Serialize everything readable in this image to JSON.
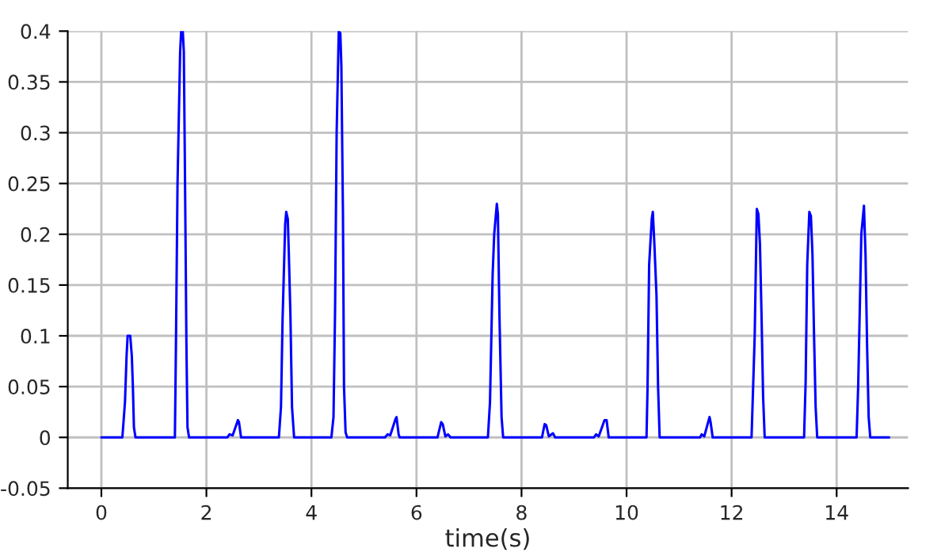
{
  "chart_data": {
    "type": "line",
    "xlabel": "time(s)",
    "xlim": [
      -0.64,
      15.36
    ],
    "xticks": [
      0,
      2,
      4,
      6,
      8,
      10,
      12,
      14
    ],
    "ylim": [
      -0.05,
      0.4
    ],
    "yticks": [
      {
        "value": -0.05,
        "label": "-0.05"
      },
      0,
      0.05,
      0.1,
      0.15,
      0.2,
      0.25,
      0.3,
      0.35,
      0.4
    ],
    "grid": true,
    "marker": "none",
    "line_style": "solid",
    "series": [
      {
        "color": "#0000ff",
        "x": [
          0,
          0.4,
          0.45,
          0.48,
          0.5,
          0.55,
          0.58,
          0.6,
          0.62,
          0.65,
          1.4,
          1.42,
          1.45,
          1.5,
          1.52,
          1.55,
          1.57,
          1.59,
          1.62,
          1.64,
          1.67,
          2.4,
          2.44,
          2.5,
          2.6,
          2.62,
          2.66,
          3.38,
          3.42,
          3.45,
          3.5,
          3.52,
          3.55,
          3.57,
          3.6,
          3.63,
          3.67,
          4.38,
          4.42,
          4.45,
          4.48,
          4.52,
          4.55,
          4.57,
          4.6,
          4.62,
          4.65,
          4.68,
          5.4,
          5.45,
          5.5,
          5.6,
          5.62,
          5.66,
          5.68,
          6.4,
          6.47,
          6.5,
          6.55,
          6.6,
          6.65,
          7.36,
          7.4,
          7.45,
          7.48,
          7.53,
          7.55,
          7.58,
          7.62,
          7.65,
          8.39,
          8.44,
          8.47,
          8.52,
          8.6,
          8.64,
          9.38,
          9.42,
          9.47,
          9.58,
          9.62,
          9.66,
          10.38,
          10.4,
          10.43,
          10.48,
          10.5,
          10.53,
          10.57,
          10.6,
          10.63,
          11.4,
          11.43,
          11.48,
          11.58,
          11.6,
          11.64,
          12.38,
          12.41,
          12.44,
          12.48,
          12.51,
          12.54,
          12.57,
          12.6,
          12.63,
          13.38,
          13.41,
          13.44,
          13.48,
          13.51,
          13.54,
          13.57,
          13.6,
          13.63,
          14.38,
          14.41,
          14.43,
          14.47,
          14.52,
          14.55,
          14.58,
          14.61,
          14.64,
          15.0
        ],
        "values": [
          0,
          0,
          0.035,
          0.08,
          0.1,
          0.1,
          0.08,
          0.05,
          0.01,
          0,
          0,
          0.09,
          0.25,
          0.38,
          0.4,
          0.4,
          0.38,
          0.27,
          0.09,
          0.01,
          0,
          0,
          0.003,
          0.002,
          0.017,
          0.015,
          0,
          0,
          0.03,
          0.115,
          0.21,
          0.222,
          0.215,
          0.18,
          0.12,
          0.03,
          0,
          0,
          0.02,
          0.125,
          0.3,
          0.4,
          0.398,
          0.365,
          0.22,
          0.05,
          0.005,
          0,
          0,
          0.003,
          0.002,
          0.018,
          0.02,
          0.003,
          0,
          0,
          0.015,
          0.013,
          0.001,
          0.003,
          0,
          0,
          0.035,
          0.16,
          0.2,
          0.23,
          0.22,
          0.12,
          0.02,
          0,
          0,
          0.013,
          0.012,
          0.001,
          0.004,
          0,
          0,
          0.003,
          0.001,
          0.017,
          0.017,
          0,
          0,
          0.05,
          0.17,
          0.215,
          0.222,
          0.19,
          0.14,
          0.05,
          0,
          0,
          0.003,
          0.001,
          0.02,
          0.015,
          0,
          0,
          0.05,
          0.1,
          0.225,
          0.22,
          0.19,
          0.12,
          0.04,
          0,
          0,
          0.055,
          0.17,
          0.222,
          0.218,
          0.18,
          0.1,
          0.03,
          0,
          0,
          0.05,
          0.1,
          0.2,
          0.228,
          0.18,
          0.09,
          0.02,
          0,
          0
        ]
      }
    ]
  }
}
